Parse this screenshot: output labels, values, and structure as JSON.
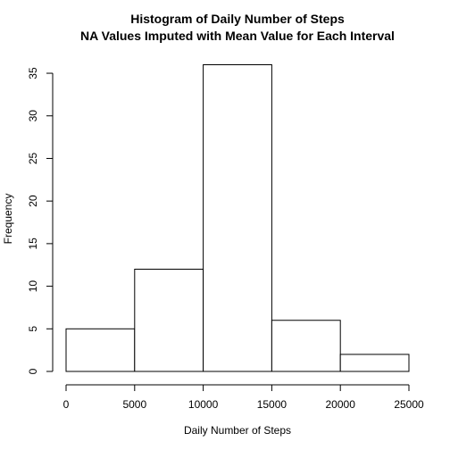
{
  "chart_data": {
    "type": "bar",
    "title": "Histogram of Daily Number of Steps",
    "subtitle": "NA Values Imputed with Mean Value for Each Interval",
    "xlabel": "Daily Number of Steps",
    "ylabel": "Frequency",
    "bins": [
      {
        "from": 0,
        "to": 5000,
        "count": 5
      },
      {
        "from": 5000,
        "to": 10000,
        "count": 12
      },
      {
        "from": 10000,
        "to": 15000,
        "count": 36
      },
      {
        "from": 15000,
        "to": 20000,
        "count": 6
      },
      {
        "from": 20000,
        "to": 25000,
        "count": 2
      }
    ],
    "xlim": [
      0,
      25000
    ],
    "ylim": [
      0,
      36
    ],
    "x_ticks": [
      "0",
      "5000",
      "10000",
      "15000",
      "20000",
      "25000"
    ],
    "y_ticks": [
      "0",
      "5",
      "10",
      "15",
      "20",
      "25",
      "30",
      "35"
    ],
    "grid": false,
    "legend": "none",
    "colors": {
      "bar_fill": "#ffffff",
      "bar_stroke": "#000000"
    }
  }
}
